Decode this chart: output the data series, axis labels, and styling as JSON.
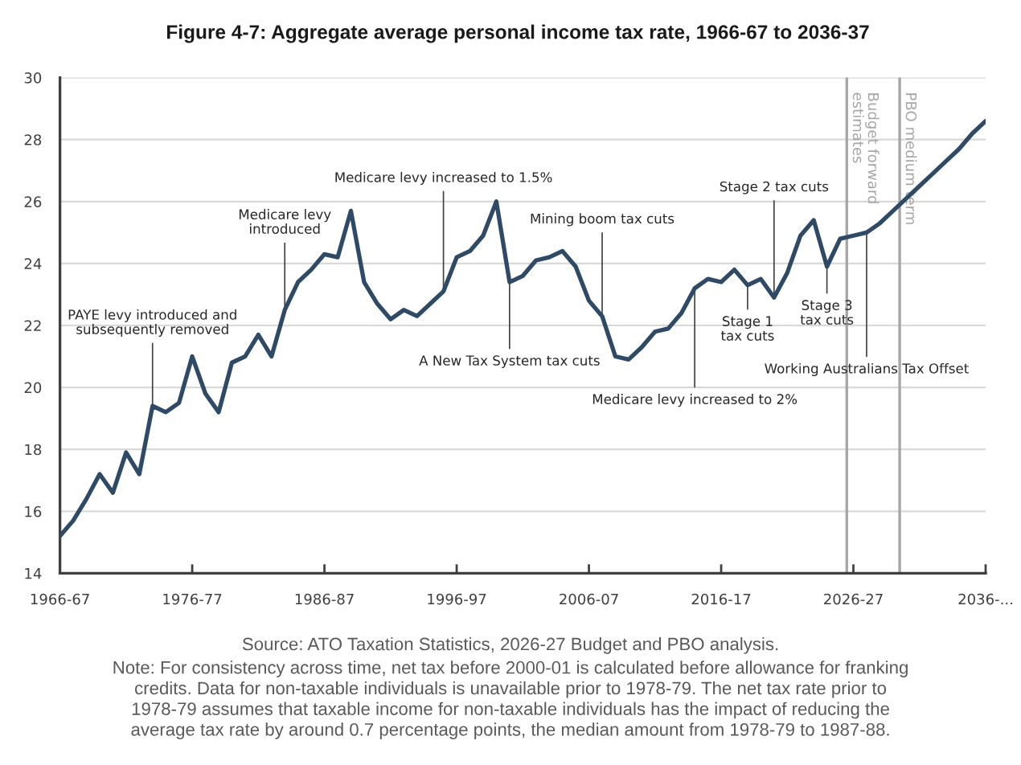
{
  "chart_data": {
    "type": "line",
    "title": "Figure 4-7: Aggregate average personal income tax rate, 1966-67 to 2036-37",
    "categories": [
      "1966-67",
      null,
      null,
      null,
      null,
      null,
      null,
      null,
      null,
      null,
      "1976-77",
      null,
      null,
      null,
      null,
      null,
      null,
      null,
      null,
      null,
      "1986-87",
      null,
      null,
      null,
      null,
      null,
      null,
      null,
      null,
      null,
      "1996-97",
      null,
      null,
      null,
      null,
      null,
      null,
      null,
      null,
      null,
      "2006-07",
      null,
      null,
      null,
      null,
      null,
      null,
      null,
      null,
      null,
      "2016-17",
      null,
      null,
      null,
      null,
      null,
      null,
      null,
      null,
      null,
      "2026-27",
      null,
      null,
      null,
      null,
      null,
      null,
      null,
      null,
      null,
      "2036-..."
    ],
    "series": [
      {
        "color": "#2f4a66",
        "values": [
          15.2,
          15.7,
          16.4,
          17.2,
          16.6,
          17.9,
          17.2,
          19.4,
          19.2,
          19.5,
          21.0,
          19.8,
          19.2,
          20.8,
          21.0,
          21.7,
          21.0,
          22.5,
          23.4,
          23.8,
          24.3,
          24.2,
          25.7,
          23.4,
          22.7,
          22.2,
          22.5,
          22.3,
          22.7,
          23.1,
          24.2,
          24.4,
          24.9,
          26.0,
          23.4,
          23.6,
          24.1,
          24.2,
          24.4,
          23.9,
          22.8,
          22.3,
          21.0,
          20.9,
          21.3,
          21.8,
          21.9,
          22.4,
          23.2,
          23.5,
          23.4,
          23.8,
          23.3,
          23.5,
          22.9,
          23.7,
          24.9,
          25.4,
          23.9,
          24.8,
          24.9,
          25.0,
          25.3,
          25.7,
          26.1,
          26.5,
          26.9,
          27.3,
          27.7,
          28.2,
          28.6
        ]
      }
    ],
    "ylim": [
      14,
      30
    ],
    "yticks": [
      14,
      16,
      18,
      20,
      22,
      24,
      26,
      28,
      30
    ],
    "grid": "y",
    "annotations": [
      {
        "text": "PAYE levy introduced and subsequently removed",
        "y": 19.4
      },
      {
        "text": "Medicare levy introduced",
        "y": 22.5
      },
      {
        "text": "Medicare levy increased to 1.5%",
        "y": 23.1
      },
      {
        "text": "A New Tax System tax cuts",
        "y": 23.4
      },
      {
        "text": "Mining boom tax cuts",
        "y": 22.3
      },
      {
        "text": "Medicare levy increased to 2%",
        "y": 23.2
      },
      {
        "text": "Stage 1 tax cuts",
        "y": 23.3
      },
      {
        "text": "Stage 2 tax cuts",
        "y": 22.9
      },
      {
        "text": "Stage 3 tax cuts",
        "y": 23.9
      },
      {
        "text": "Working Australians Tax Offset",
        "y": 25.0
      },
      "Budget forward estimates",
      "PBO medium term",
      "Source: ATO Taxation Statistics, 2026-27 Budget and PBO analysis.",
      "Note: For consistency across time, net tax before 2000-01 is calculated before allowance for franking\ncredits. Data for non-taxable individuals is unavailable prior to 1978-79. The net tax rate prior to\n1978-79 assumes that taxable income for non-taxable individuals has the impact of reducing the\naverage tax rate by around 0.7 percentage points, the median amount from 1978-79 to 1987-88."
    ]
  }
}
